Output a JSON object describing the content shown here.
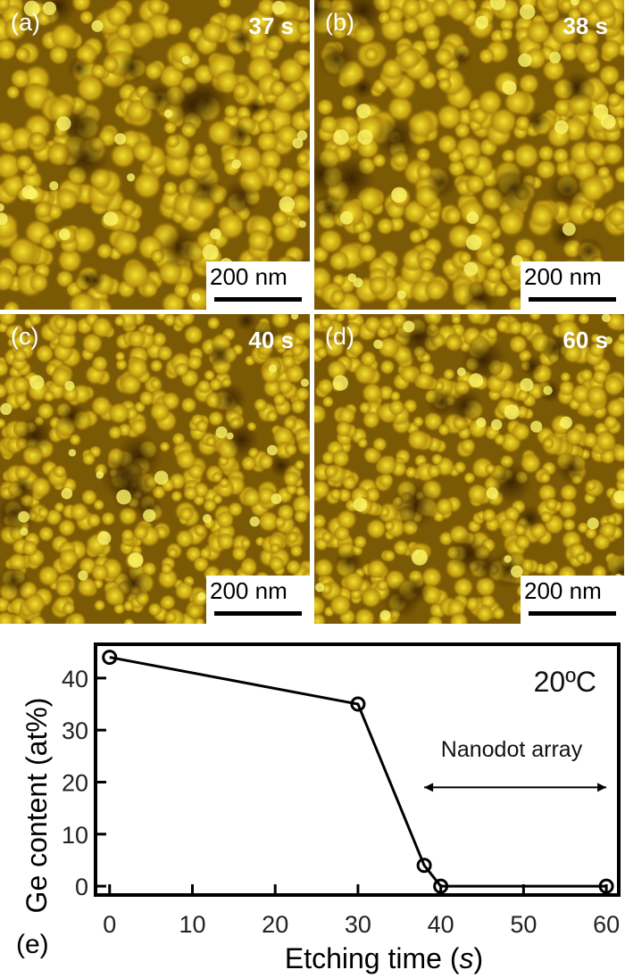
{
  "panels": [
    {
      "label": "(a)",
      "time": "37 s",
      "scale": "200 nm",
      "seed": 1
    },
    {
      "label": "(b)",
      "time": "38 s",
      "scale": "200 nm",
      "seed": 2
    },
    {
      "label": "(c)",
      "time": "40 s",
      "scale": "200 nm",
      "seed": 3
    },
    {
      "label": "(d)",
      "time": "60 s",
      "scale": "200 nm",
      "seed": 4
    }
  ],
  "chart_data": {
    "type": "line",
    "panel_label": "(e)",
    "xlabel": "Etching time (",
    "xlabel_italic": "s",
    "xlabel_end": ")",
    "ylabel": "Ge content (at%)",
    "x": [
      0,
      30,
      38,
      40,
      60
    ],
    "series": [
      {
        "values": [
          44,
          35,
          4,
          0,
          0
        ]
      }
    ],
    "xlim": [
      -1.7,
      61.5
    ],
    "ylim": [
      -1.7,
      46.5
    ],
    "xticks": [
      0,
      10,
      20,
      30,
      40,
      50,
      60
    ],
    "yticks": [
      0,
      10,
      20,
      30,
      40
    ],
    "annotations": {
      "temperature": "20ºC",
      "range_label": "Nanodot array",
      "range": [
        38,
        60
      ]
    },
    "marker": "open-circle",
    "grid": false,
    "color": "#000000"
  }
}
